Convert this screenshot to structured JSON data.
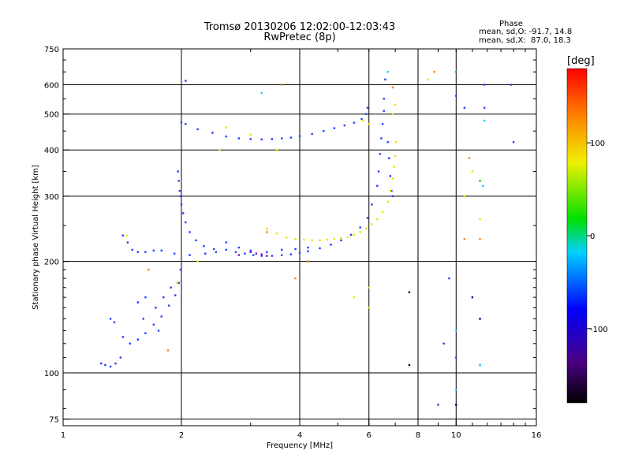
{
  "header": {
    "title_line1": "Tromsø 20130206 12:02:00-12:03:43",
    "title_line2": "RwPretec (8p)"
  },
  "phase_box": {
    "title": "Phase",
    "line1": "mean, sd,O: -91.7, 14.8",
    "line2": "mean, sd,X:  87.0, 18.3"
  },
  "colorbar": {
    "unit": "[deg]",
    "ticks": [
      {
        "value": 100,
        "label": "100"
      },
      {
        "value": 0,
        "label": "0"
      },
      {
        "value": -100,
        "label": "-100"
      }
    ],
    "range": [
      -180,
      180
    ]
  },
  "chart_data": {
    "type": "scatter",
    "xlabel": "Frequency [MHz]",
    "ylabel": "Stationary phase Virtual Height [km]",
    "x_scale": "log",
    "y_scale": "log",
    "xlim": [
      1,
      16
    ],
    "ylim": [
      72,
      750
    ],
    "x_ticks": [
      {
        "value": 1,
        "label": "1"
      },
      {
        "value": 2,
        "label": "2"
      },
      {
        "value": 4,
        "label": "4"
      },
      {
        "value": 6,
        "label": "6"
      },
      {
        "value": 8,
        "label": "8"
      },
      {
        "value": 10,
        "label": "10"
      },
      {
        "value": 16,
        "label": "16"
      }
    ],
    "y_ticks": [
      {
        "value": 75,
        "label": "75"
      },
      {
        "value": 100,
        "label": "100"
      },
      {
        "value": 200,
        "label": "200"
      },
      {
        "value": 300,
        "label": "300"
      },
      {
        "value": 400,
        "label": "400"
      },
      {
        "value": 500,
        "label": "500"
      },
      {
        "value": 600,
        "label": "600"
      },
      {
        "value": 750,
        "label": "750"
      }
    ],
    "grid": true,
    "series": [
      {
        "color": "#2040ff",
        "points": [
          [
            1.25,
            106
          ],
          [
            1.28,
            105
          ],
          [
            1.32,
            104
          ],
          [
            1.36,
            106
          ],
          [
            1.4,
            110
          ],
          [
            1.32,
            140
          ],
          [
            1.35,
            137
          ],
          [
            1.42,
            125
          ],
          [
            1.48,
            120
          ],
          [
            1.55,
            123
          ],
          [
            1.62,
            128
          ],
          [
            1.7,
            135
          ],
          [
            1.78,
            142
          ],
          [
            1.86,
            152
          ],
          [
            1.93,
            162
          ],
          [
            1.97,
            175
          ],
          [
            1.99,
            190
          ],
          [
            1.55,
            155
          ],
          [
            1.62,
            160
          ],
          [
            1.72,
            150
          ],
          [
            1.8,
            160
          ],
          [
            1.88,
            170
          ],
          [
            1.6,
            140
          ],
          [
            1.75,
            130
          ],
          [
            1.42,
            235
          ],
          [
            1.46,
            225
          ],
          [
            1.5,
            215
          ],
          [
            1.55,
            212
          ],
          [
            1.62,
            212
          ],
          [
            1.7,
            214
          ],
          [
            1.78,
            214
          ],
          [
            1.92,
            210
          ],
          [
            2.1,
            208
          ],
          [
            2.3,
            210
          ],
          [
            2.45,
            212
          ],
          [
            2.6,
            215
          ],
          [
            2.75,
            212
          ],
          [
            2.9,
            210
          ],
          [
            3.05,
            208
          ],
          [
            3.2,
            207
          ],
          [
            3.4,
            207
          ],
          [
            3.6,
            208
          ],
          [
            3.8,
            209
          ],
          [
            4.0,
            211
          ],
          [
            4.2,
            213
          ],
          [
            4.5,
            217
          ],
          [
            4.8,
            222
          ],
          [
            5.1,
            228
          ],
          [
            5.4,
            236
          ],
          [
            5.7,
            247
          ],
          [
            5.95,
            262
          ],
          [
            6.1,
            285
          ],
          [
            1.96,
            350
          ],
          [
            1.97,
            330
          ],
          [
            1.98,
            310
          ],
          [
            1.99,
            300
          ],
          [
            2.0,
            285
          ],
          [
            2.02,
            270
          ],
          [
            2.05,
            255
          ],
          [
            2.1,
            240
          ],
          [
            2.18,
            228
          ],
          [
            2.28,
            220
          ],
          [
            2.42,
            216
          ],
          [
            2.6,
            225
          ],
          [
            2.8,
            218
          ],
          [
            3.0,
            214
          ],
          [
            3.3,
            212
          ],
          [
            3.6,
            215
          ],
          [
            3.9,
            216
          ],
          [
            4.2,
            218
          ],
          [
            2.0,
            475
          ],
          [
            2.05,
            470
          ],
          [
            2.2,
            455
          ],
          [
            2.4,
            445
          ],
          [
            2.6,
            435
          ],
          [
            2.8,
            430
          ],
          [
            3.0,
            428
          ],
          [
            3.2,
            427
          ],
          [
            3.4,
            428
          ],
          [
            3.6,
            430
          ],
          [
            3.8,
            432
          ],
          [
            4.0,
            436
          ],
          [
            4.3,
            442
          ],
          [
            4.6,
            450
          ],
          [
            4.9,
            458
          ],
          [
            5.2,
            466
          ],
          [
            5.5,
            474
          ],
          [
            5.75,
            485
          ],
          [
            5.9,
            500
          ],
          [
            5.95,
            520
          ],
          [
            6.3,
            320
          ],
          [
            6.35,
            350
          ],
          [
            6.4,
            390
          ],
          [
            6.45,
            430
          ],
          [
            6.5,
            470
          ],
          [
            6.55,
            510
          ],
          [
            6.55,
            550
          ],
          [
            6.6,
            620
          ],
          [
            6.7,
            420
          ],
          [
            6.75,
            380
          ],
          [
            6.8,
            340
          ],
          [
            6.85,
            310
          ],
          [
            6.9,
            300
          ],
          [
            2.05,
            615
          ],
          [
            9.0,
            82
          ],
          [
            9.3,
            120
          ],
          [
            9.6,
            180
          ],
          [
            10.0,
            110
          ],
          [
            10.0,
            560
          ],
          [
            10.5,
            520
          ],
          [
            11.8,
            600
          ],
          [
            11.8,
            520
          ],
          [
            13.8,
            600
          ],
          [
            14.0,
            420
          ],
          [
            11.5,
            105
          ]
        ]
      },
      {
        "color": "#e8e400",
        "points": [
          [
            3.3,
            245
          ],
          [
            3.5,
            238
          ],
          [
            3.7,
            232
          ],
          [
            3.9,
            230
          ],
          [
            4.1,
            229
          ],
          [
            4.3,
            228
          ],
          [
            4.5,
            228
          ],
          [
            4.7,
            229
          ],
          [
            4.9,
            230
          ],
          [
            5.1,
            231
          ],
          [
            5.3,
            233
          ],
          [
            5.5,
            236
          ],
          [
            5.7,
            240
          ],
          [
            5.9,
            245
          ],
          [
            6.1,
            252
          ],
          [
            6.3,
            260
          ],
          [
            6.5,
            272
          ],
          [
            6.7,
            290
          ],
          [
            6.8,
            310
          ],
          [
            6.9,
            335
          ],
          [
            6.95,
            360
          ],
          [
            7.0,
            385
          ],
          [
            7.02,
            420
          ],
          [
            5.8,
            480
          ],
          [
            6.0,
            470
          ],
          [
            6.9,
            500
          ],
          [
            7.0,
            530
          ],
          [
            1.45,
            235
          ],
          [
            1.95,
            175
          ],
          [
            2.2,
            200
          ],
          [
            2.6,
            460
          ],
          [
            2.5,
            400
          ],
          [
            3.0,
            440
          ],
          [
            3.5,
            400
          ],
          [
            5.5,
            160
          ],
          [
            6.0,
            170
          ],
          [
            6.0,
            150
          ],
          [
            8.5,
            620
          ],
          [
            10.5,
            300
          ],
          [
            11.0,
            350
          ],
          [
            11.5,
            260
          ]
        ]
      },
      {
        "color": "#ff8000",
        "points": [
          [
            1.65,
            190
          ],
          [
            1.85,
            115
          ],
          [
            3.3,
            240
          ],
          [
            3.6,
            600
          ],
          [
            3.9,
            180
          ],
          [
            4.2,
            200
          ],
          [
            6.9,
            590
          ],
          [
            8.8,
            650
          ],
          [
            10.5,
            230
          ],
          [
            11.5,
            230
          ],
          [
            10.8,
            380
          ]
        ]
      },
      {
        "color": "#7a10c0",
        "points": [
          [
            3.0,
            212
          ],
          [
            3.1,
            210
          ],
          [
            3.2,
            209
          ],
          [
            3.3,
            207
          ],
          [
            2.8,
            208
          ]
        ]
      },
      {
        "color": "#20d0ff",
        "points": [
          [
            3.2,
            570
          ],
          [
            10.0,
            130
          ],
          [
            10.0,
            90
          ],
          [
            11.8,
            480
          ],
          [
            11.7,
            320
          ],
          [
            11.5,
            105
          ],
          [
            6.7,
            650
          ]
        ]
      },
      {
        "color": "#20c020",
        "points": [
          [
            11.5,
            330
          ],
          [
            10.0,
            650
          ]
        ]
      },
      {
        "color": "#000066",
        "points": [
          [
            7.6,
            105
          ],
          [
            7.6,
            165
          ],
          [
            10.0,
            82
          ],
          [
            11.0,
            160
          ],
          [
            11.5,
            140
          ]
        ]
      }
    ]
  }
}
